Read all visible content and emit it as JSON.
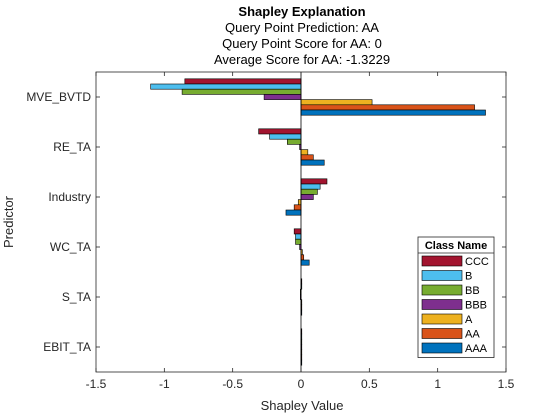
{
  "chart_data": {
    "type": "bar",
    "orientation": "horizontal",
    "title": "Shapley Explanation",
    "subtitle_lines": [
      "Query Point Prediction: AA",
      "Query Point Score for AA: 0",
      "Average Score for AA: -1.3229"
    ],
    "xlabel": "Shapley Value",
    "ylabel": "Predictor",
    "xlim": [
      -1.5,
      1.5
    ],
    "xticks": [
      -1.5,
      -1,
      -0.5,
      0,
      0.5,
      1,
      1.5
    ],
    "xtick_labels": [
      "-1.5",
      "-1",
      "-0.5",
      "0",
      "0.5",
      "1",
      "1.5"
    ],
    "categories": [
      "MVE_BVTD",
      "RE_TA",
      "Industry",
      "WC_TA",
      "S_TA",
      "EBIT_TA"
    ],
    "grid": false,
    "legend": {
      "title": "Class Name",
      "placement": "bottom-right"
    },
    "series": [
      {
        "name": "CCC",
        "color": "#A2142F",
        "values": [
          -0.85,
          -0.31,
          0.19,
          -0.05,
          0.0,
          0.0
        ]
      },
      {
        "name": "B",
        "color": "#4DBEEE",
        "values": [
          -1.1,
          -0.23,
          0.14,
          -0.04,
          0.0,
          0.0
        ]
      },
      {
        "name": "BB",
        "color": "#77AC30",
        "values": [
          -0.87,
          -0.1,
          0.12,
          -0.04,
          -0.005,
          0.0
        ]
      },
      {
        "name": "BBB",
        "color": "#7E2F8E",
        "values": [
          -0.27,
          -0.01,
          0.09,
          -0.01,
          -0.005,
          0.0
        ]
      },
      {
        "name": "A",
        "color": "#EDB120",
        "values": [
          0.52,
          0.05,
          -0.02,
          0.01,
          0.0,
          0.0
        ]
      },
      {
        "name": "AA",
        "color": "#D95319",
        "values": [
          1.27,
          0.09,
          -0.05,
          0.02,
          0.0,
          0.0
        ]
      },
      {
        "name": "AAA",
        "color": "#0072BD",
        "values": [
          1.35,
          0.17,
          -0.11,
          0.06,
          0.005,
          0.0
        ]
      }
    ]
  }
}
